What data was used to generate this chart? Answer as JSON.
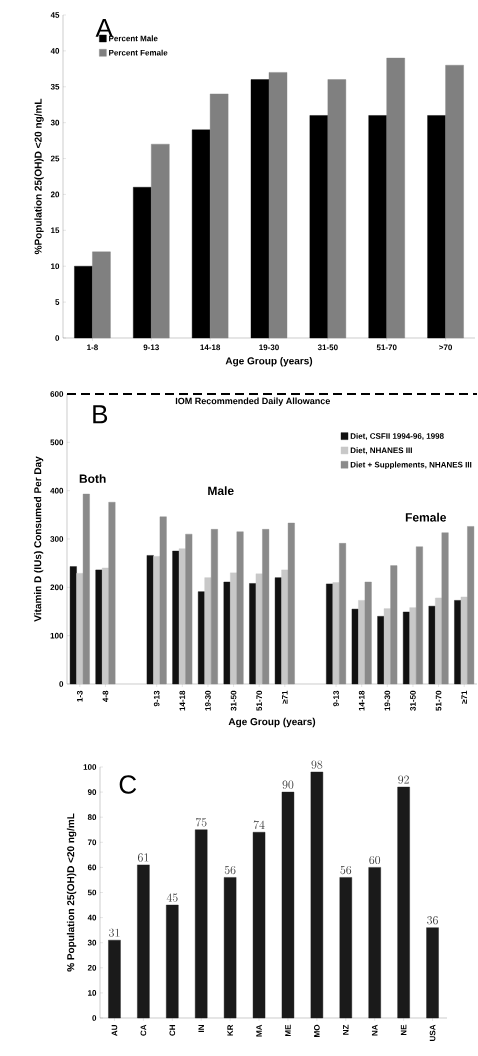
{
  "chart_data": [
    {
      "type": "bar",
      "title": "A",
      "ylabel": "%Population 25(OH)D <20 ng/mL",
      "xlabel": "Age Group (years)",
      "categories": [
        "1-8",
        "9-13",
        "14-18",
        "19-30",
        "31-50",
        "51-70",
        ">70"
      ],
      "series": [
        {
          "name": "Percent Male",
          "color": "#000000",
          "values": [
            10,
            21,
            29,
            36,
            31,
            31,
            31
          ]
        },
        {
          "name": "Percent Female",
          "color": "#808080",
          "values": [
            12,
            27,
            34,
            37,
            36,
            39,
            38
          ]
        }
      ],
      "ylim": [
        0,
        45
      ],
      "yticks": [
        0,
        5,
        10,
        15,
        20,
        25,
        30,
        35,
        40,
        45
      ],
      "legend": "top left"
    },
    {
      "type": "bar",
      "title": "B",
      "ylabel": "Vitamin D (IUs) Consumed Per Day",
      "xlabel": "Age Group (years)",
      "categories": [
        "1-3",
        "4-8",
        null,
        "9-13",
        "14-18",
        "19-30",
        "31-50",
        "51-70",
        "≥71",
        null,
        "9-13",
        "14-18",
        "19-30",
        "31-50",
        "51-70",
        "≥71"
      ],
      "series": [
        {
          "name": "Diet, CSFII 1994-96, 1998",
          "color": "#111111",
          "values": [
            243,
            236,
            null,
            266,
            275,
            191,
            211,
            208,
            220,
            null,
            207,
            155,
            140,
            149,
            161,
            173
          ]
        },
        {
          "name": "Diet, NHANES III",
          "color": "#c8c8c8",
          "values": [
            229,
            240,
            null,
            264,
            280,
            220,
            230,
            228,
            236,
            null,
            210,
            173,
            156,
            158,
            178,
            180
          ]
        },
        {
          "name": "Diet + Supplements, NHANES III",
          "color": "#8a8a8a",
          "values": [
            393,
            376,
            null,
            346,
            310,
            320,
            315,
            320,
            333,
            null,
            291,
            211,
            245,
            284,
            313,
            326
          ]
        }
      ],
      "ylim": [
        0,
        600
      ],
      "yticks": [
        0,
        100,
        200,
        300,
        400,
        500,
        600
      ],
      "legend": "top right",
      "ref_lines": [
        {
          "axis": "y",
          "value": 600,
          "label": "IOM Recommended Daily Allowance",
          "color": "#000000",
          "line_style": "dashed"
        }
      ],
      "annotations": [
        "Both",
        "Male",
        "Female"
      ]
    },
    {
      "type": "bar",
      "title": "C",
      "ylabel": "% Population 25(OH)D <20 ng/mL",
      "categories": [
        "AU",
        "CA",
        "CH",
        "IN",
        "KR",
        "MA",
        "ME",
        "MO",
        "NZ",
        "NA",
        "NE",
        "USA"
      ],
      "values": [
        31,
        61,
        45,
        75,
        56,
        74,
        90,
        98,
        56,
        60,
        92,
        36
      ],
      "color": "#1a1a1a",
      "ylim": [
        0,
        100
      ],
      "yticks": [
        0,
        10,
        20,
        30,
        40,
        50,
        60,
        70,
        80,
        90,
        100
      ],
      "data_labels": true
    }
  ]
}
